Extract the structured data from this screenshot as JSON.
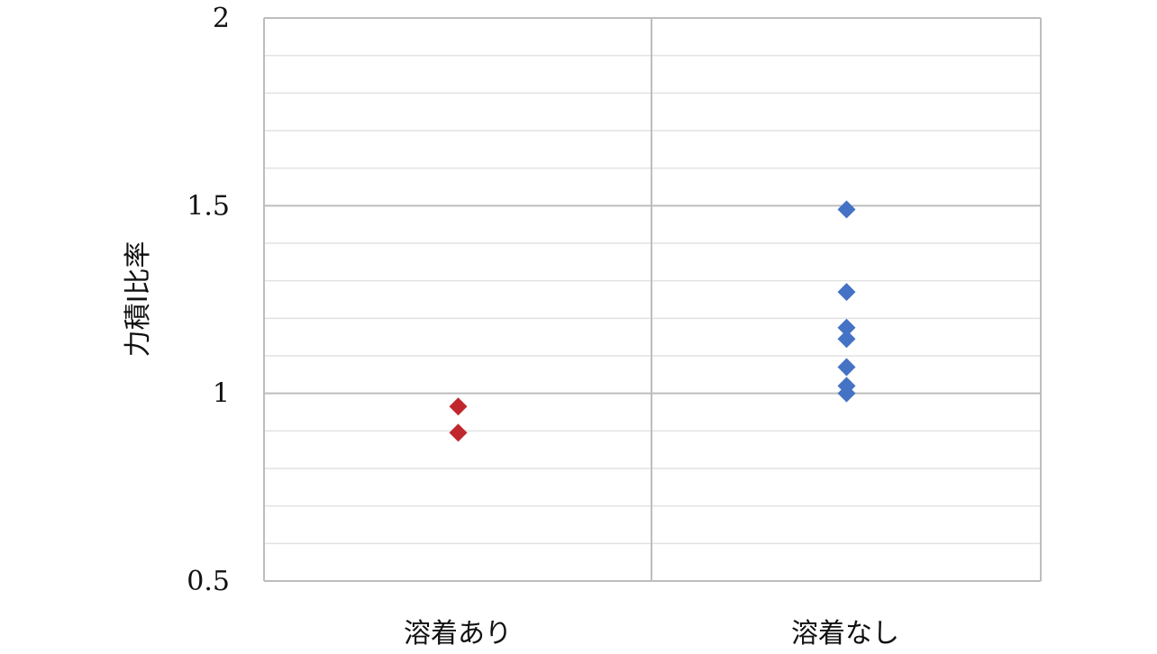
{
  "chart_data": {
    "type": "scatter",
    "title": "",
    "xlabel": "",
    "ylabel": "力積I比率",
    "ylim": [
      0.5,
      2
    ],
    "yticks": [
      "0.5",
      "1",
      "1.5",
      "2"
    ],
    "categories": [
      "溶着あり",
      "溶着なし"
    ],
    "grid": true,
    "series": [
      {
        "category": "溶着あり",
        "color": "#c0272d",
        "values": [
          0.965,
          0.895
        ]
      },
      {
        "category": "溶着なし",
        "color": "#4472c4",
        "values": [
          1.49,
          1.27,
          1.175,
          1.145,
          1.07,
          1.02,
          1.0
        ]
      }
    ]
  }
}
